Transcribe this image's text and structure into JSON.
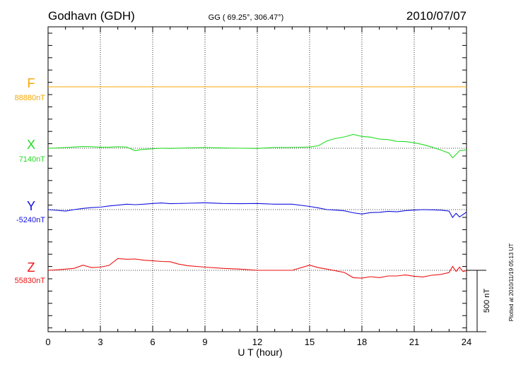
{
  "header": {
    "station": "Godhavn (GDH)",
    "coords": "GG ( 69.25°, 306.47°)",
    "date": "2010/07/07"
  },
  "footer_note": "Plotted at 2010/11/19 05:13 UT",
  "scale_label": "500 nT",
  "chart_data": {
    "type": "line",
    "xlabel": "U T (hour)",
    "xlim": [
      0,
      24
    ],
    "xticks": [
      "0",
      "3",
      "6",
      "9",
      "12",
      "15",
      "18",
      "21",
      "24"
    ],
    "scale_nT": 500,
    "series": [
      {
        "name": "F",
        "baseline_label": "88880nT",
        "color": "#f5a800",
        "x": [
          0,
          2,
          4,
          6,
          8,
          10,
          12,
          14,
          16,
          18,
          20,
          22,
          24
        ],
        "y": [
          88880,
          88880,
          88880,
          88880,
          88880,
          88880,
          88880,
          88880,
          88880,
          88880,
          88880,
          88880,
          88880
        ]
      },
      {
        "name": "X",
        "baseline_label": "7140nT",
        "color": "#22dd22",
        "x": [
          0,
          0.5,
          1,
          1.5,
          2,
          2.5,
          3,
          3.5,
          4,
          4.5,
          5,
          5.3,
          5.6,
          6,
          6.5,
          7,
          8,
          9,
          10,
          11,
          12,
          13,
          14,
          15,
          15.5,
          16,
          16.5,
          17,
          17.5,
          18,
          18.5,
          19,
          19.5,
          20,
          20.5,
          21,
          21.5,
          22,
          22.5,
          23,
          23.2,
          23.4,
          23.6,
          24
        ],
        "y": [
          7140,
          7142,
          7146,
          7150,
          7154,
          7152,
          7148,
          7148,
          7152,
          7150,
          7120,
          7128,
          7132,
          7136,
          7140,
          7138,
          7142,
          7146,
          7142,
          7140,
          7138,
          7146,
          7146,
          7150,
          7160,
          7200,
          7220,
          7232,
          7252,
          7236,
          7230,
          7214,
          7210,
          7196,
          7194,
          7184,
          7170,
          7150,
          7126,
          7100,
          7062,
          7090,
          7120,
          7126
        ]
      },
      {
        "name": "Y",
        "baseline_label": "-5240nT",
        "color": "#1010e0",
        "x": [
          0,
          0.5,
          1,
          1.5,
          2,
          2.5,
          3,
          3.5,
          4,
          4.5,
          5,
          5.5,
          6,
          6.5,
          7,
          8,
          9,
          10,
          11,
          12,
          13,
          14,
          15,
          15.5,
          16,
          16.5,
          17,
          17.5,
          18,
          18.5,
          19,
          19.5,
          20,
          20.5,
          21,
          21.5,
          22,
          22.5,
          23,
          23.2,
          23.4,
          23.6,
          24
        ],
        "y": [
          -5240,
          -5246,
          -5252,
          -5240,
          -5230,
          -5224,
          -5220,
          -5210,
          -5204,
          -5196,
          -5200,
          -5196,
          -5190,
          -5186,
          -5192,
          -5188,
          -5184,
          -5190,
          -5192,
          -5190,
          -5196,
          -5196,
          -5214,
          -5226,
          -5240,
          -5244,
          -5250,
          -5266,
          -5276,
          -5264,
          -5262,
          -5254,
          -5258,
          -5248,
          -5244,
          -5240,
          -5242,
          -5244,
          -5252,
          -5304,
          -5270,
          -5300,
          -5260
        ]
      },
      {
        "name": "Z",
        "baseline_label": "55830nT",
        "color": "#ee1111",
        "x": [
          0,
          0.5,
          1,
          1.5,
          2,
          2.5,
          3,
          3.5,
          4,
          4.5,
          5,
          5.5,
          6,
          6.5,
          7,
          7.5,
          8,
          9,
          10,
          11,
          12,
          13,
          14,
          15,
          15.5,
          16,
          16.5,
          17,
          17.5,
          18,
          18.5,
          19,
          19.5,
          20,
          20.5,
          21,
          21.5,
          22,
          22.5,
          23,
          23.2,
          23.4,
          23.6,
          23.8,
          24
        ],
        "y": [
          55830,
          55834,
          55840,
          55846,
          55872,
          55852,
          55856,
          55870,
          55926,
          55920,
          55922,
          55912,
          55908,
          55902,
          55900,
          55880,
          55868,
          55856,
          55846,
          55840,
          55830,
          55830,
          55830,
          55872,
          55852,
          55840,
          55826,
          55812,
          55770,
          55766,
          55778,
          55770,
          55784,
          55784,
          55792,
          55782,
          55776,
          55790,
          55796,
          55812,
          55862,
          55820,
          55856,
          55820,
          55828
        ]
      }
    ]
  }
}
